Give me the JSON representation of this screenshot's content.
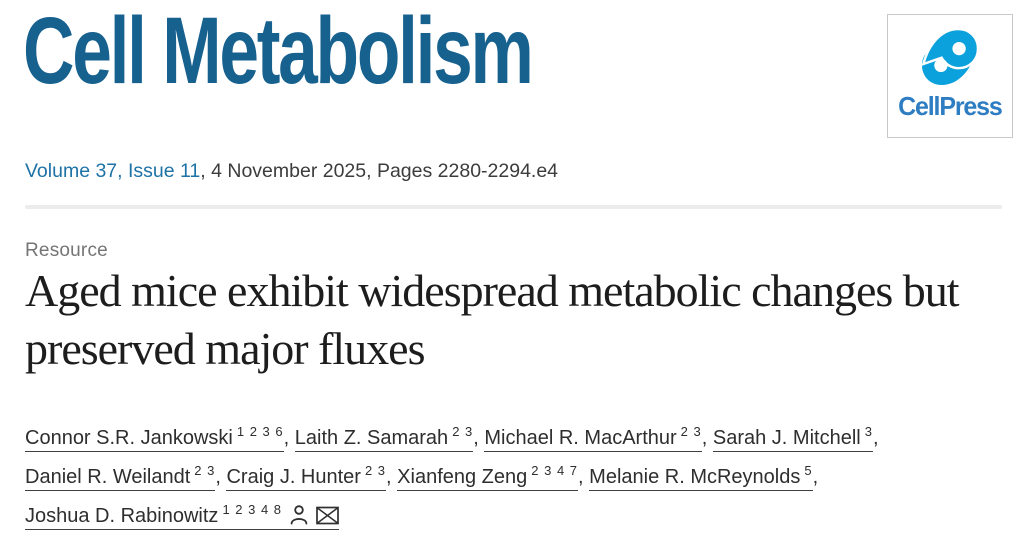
{
  "journal": {
    "title": "Cell Metabolism",
    "publisher": "CellPress"
  },
  "citation": {
    "volume_issue": "Volume 37, Issue 11",
    "details": ", 4 November 2025, Pages 2280-2294.e4"
  },
  "article": {
    "type_label": "Resource",
    "title": "Aged mice exhibit widespread metabolic changes but preserved major fluxes"
  },
  "authors": [
    {
      "name": "Connor S.R. Jankowski",
      "affiliations": "1 2 3 6"
    },
    {
      "name": "Laith Z. Samarah",
      "affiliations": "2 3"
    },
    {
      "name": "Michael R. MacArthur",
      "affiliations": "2 3"
    },
    {
      "name": "Sarah J. Mitchell",
      "affiliations": "3"
    },
    {
      "name": "Daniel R. Weilandt",
      "affiliations": "2 3"
    },
    {
      "name": "Craig J. Hunter",
      "affiliations": "2 3"
    },
    {
      "name": "Xianfeng Zeng",
      "affiliations": "2 3 4 7"
    },
    {
      "name": "Melanie R. McReynolds",
      "affiliations": "5"
    },
    {
      "name": "Joshua D. Rabinowitz",
      "affiliations": "1 2 3 4 8",
      "icons": [
        "person-icon",
        "envelope-icon"
      ]
    }
  ],
  "colors": {
    "journal_brand_blue": "#17618f",
    "link_blue": "#1d72a6",
    "cellpress_text_blue": "#2e7dc2",
    "cellpress_icon_cyan": "#0ba1dc",
    "body_text": "#2e2e2e",
    "label_gray": "#757575",
    "divider_gray": "#ececec"
  }
}
